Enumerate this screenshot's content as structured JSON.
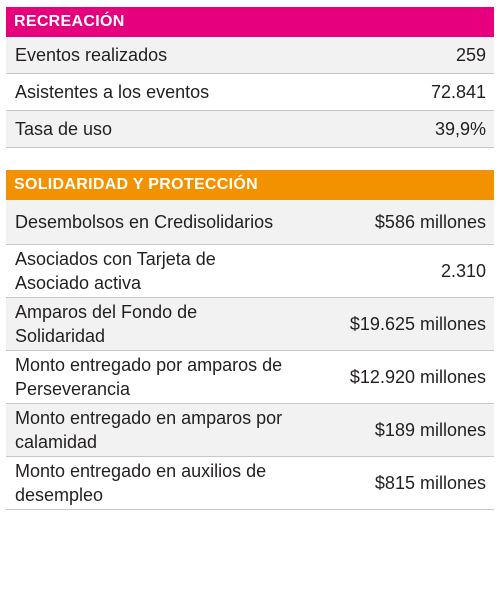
{
  "colors": {
    "recreacion_header": "#e6007e",
    "solidaridad_header": "#f39200",
    "row_alt": "#f2f2f2",
    "divider": "#c8c8c8"
  },
  "recreacion": {
    "title": "RECREACIÓN",
    "rows": [
      {
        "label": "Eventos realizados",
        "value": "259"
      },
      {
        "label": "Asistentes a los eventos",
        "value": "72.841"
      },
      {
        "label": "Tasa de uso",
        "value": "39,9%"
      }
    ]
  },
  "solidaridad": {
    "title": "SOLIDARIDAD Y PROTECCIÓN",
    "rows": [
      {
        "label": "Desembolsos en Credisolidarios",
        "value": "$586 millones"
      },
      {
        "label": "Asociados con Tarjeta de Asociado activa",
        "value": "2.310"
      },
      {
        "label": "Amparos del Fondo de Solidaridad",
        "value": "$19.625 millones"
      },
      {
        "label": "Monto entregado por amparos de Perseverancia",
        "value": "$12.920 millones"
      },
      {
        "label": "Monto entregado en amparos por calamidad",
        "value": "$189 millones"
      },
      {
        "label": "Monto entregado en auxilios de desempleo",
        "value": "$815 millones"
      }
    ]
  }
}
